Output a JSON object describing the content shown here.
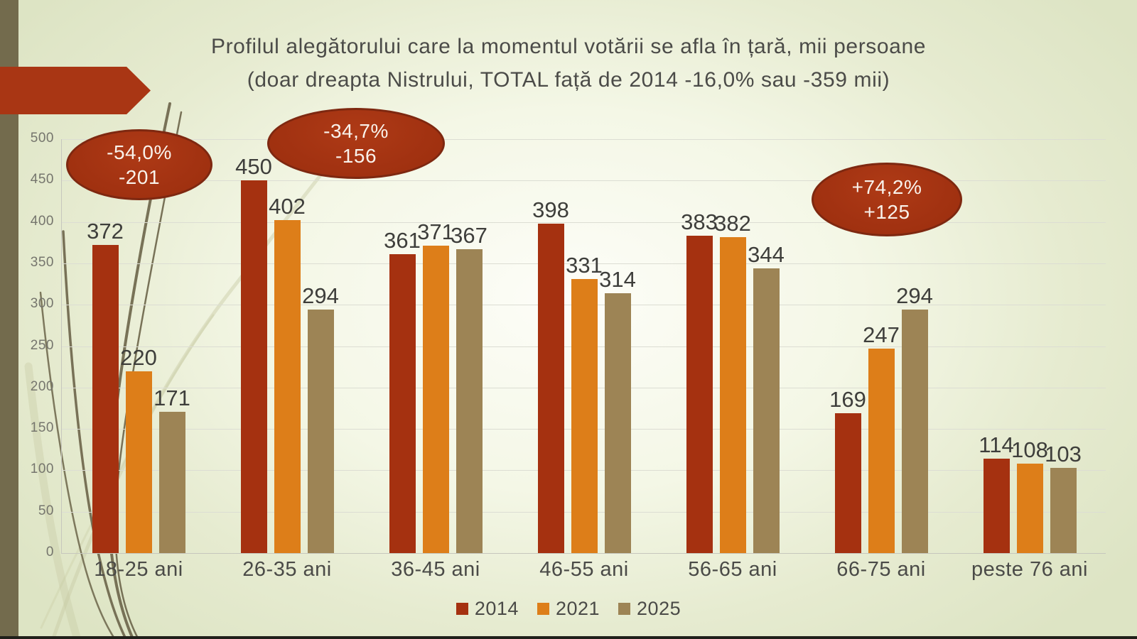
{
  "slide": {
    "title_line1": "Profilul alegătorului care la momentul votării se afla în țară, mii persoane",
    "title_line2": "(doar dreapta Nistrului, TOTAL față de 2014 -16,0% sau -359 mii)",
    "colors": {
      "background_edge": "#DDE4C4",
      "background_center": "#FDFDF8",
      "left_strip": "#736B4D",
      "arrow_red": "#A93614",
      "bubble_fill": "#A33412",
      "bubble_border": "#7E2810",
      "bubble_text": "#F9F2EB",
      "title_text": "#4B4B48",
      "value_label_text": "#3E3E3B",
      "axis_tick_text": "#75756D",
      "gridline": "#DCDDD3"
    }
  },
  "chart_data": {
    "type": "bar",
    "title": "Profilul alegătorului care la momentul votării se afla în țară, mii persoane (doar dreapta Nistrului, TOTAL față de 2014 -16,0% sau -359 mii)",
    "categories": [
      "18-25 ani",
      "26-35 ani",
      "36-45 ani",
      "46-55 ani",
      "56-65 ani",
      "66-75 ani",
      "peste 76 ani"
    ],
    "series": [
      {
        "name": "2014",
        "color": "#A53110",
        "values": [
          372,
          450,
          361,
          398,
          383,
          169,
          114
        ]
      },
      {
        "name": "2021",
        "color": "#DD7E19",
        "values": [
          220,
          402,
          371,
          331,
          382,
          247,
          108
        ]
      },
      {
        "name": "2025",
        "color": "#9D8455",
        "values": [
          171,
          294,
          367,
          314,
          344,
          294,
          103
        ]
      }
    ],
    "xlabel": "",
    "ylabel": "",
    "ylim": [
      0,
      500
    ],
    "ytick_step": 50,
    "grid": true,
    "legend_position": "bottom",
    "annotations": [
      {
        "lines": [
          "-54,0%",
          "-201"
        ],
        "category": "18-25 ani"
      },
      {
        "lines": [
          "-34,7%",
          "-156"
        ],
        "category": "26-35 ani"
      },
      {
        "lines": [
          "+74,2%",
          "+125"
        ],
        "category": "66-75 ani"
      }
    ]
  }
}
